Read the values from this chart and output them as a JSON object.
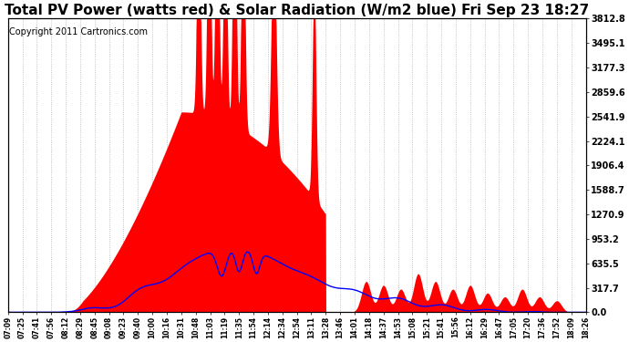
{
  "title": "Total PV Power (watts red) & Solar Radiation (W/m2 blue) Fri Sep 23 18:27",
  "copyright": "Copyright 2011 Cartronics.com",
  "ylabel_right": [
    "3812.8",
    "3495.1",
    "3177.3",
    "2859.6",
    "2541.9",
    "2224.1",
    "1906.4",
    "1588.7",
    "1270.9",
    "953.2",
    "635.5",
    "317.7",
    "0.0"
  ],
  "ytick_values": [
    3812.8,
    3495.1,
    3177.3,
    2859.6,
    2541.9,
    2224.1,
    1906.4,
    1588.7,
    1270.9,
    953.2,
    635.5,
    317.7,
    0.0
  ],
  "ylim": [
    0,
    3812.8
  ],
  "background_color": "#ffffff",
  "plot_bg_color": "#ffffff",
  "red_color": "#ff0000",
  "blue_color": "#0000ff",
  "grid_color": "#aaaaaa",
  "title_fontsize": 11,
  "copyright_fontsize": 7,
  "xtick_labels": [
    "07:09",
    "07:25",
    "07:41",
    "07:56",
    "08:12",
    "08:29",
    "08:45",
    "09:08",
    "09:23",
    "09:40",
    "10:00",
    "10:16",
    "10:31",
    "10:48",
    "11:03",
    "11:19",
    "11:35",
    "11:54",
    "12:14",
    "12:34",
    "12:54",
    "13:11",
    "13:28",
    "13:46",
    "14:01",
    "14:18",
    "14:37",
    "14:53",
    "15:08",
    "15:21",
    "15:41",
    "15:56",
    "16:12",
    "16:29",
    "16:47",
    "17:05",
    "17:20",
    "17:36",
    "17:52",
    "18:09",
    "18:26"
  ]
}
